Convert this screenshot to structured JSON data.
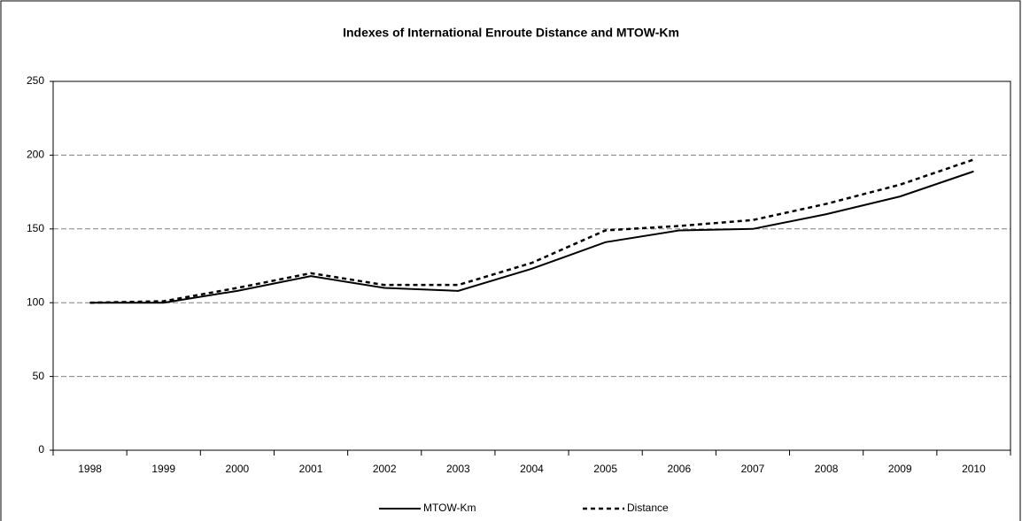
{
  "chart_data": {
    "type": "line",
    "title": "Indexes of International Enroute Distance and MTOW-Km",
    "categories": [
      "1998",
      "1999",
      "2000",
      "2001",
      "2002",
      "2003",
      "2004",
      "2005",
      "2006",
      "2007",
      "2008",
      "2009",
      "2010"
    ],
    "series": [
      {
        "name": "MTOW-Km",
        "color": "#000000",
        "dash": "solid",
        "values": [
          100,
          100,
          108,
          118,
          110,
          108,
          123,
          141,
          149,
          150,
          160,
          172,
          189
        ]
      },
      {
        "name": "Distance",
        "color": "#000000",
        "dash": "dotted",
        "values": [
          100,
          101,
          110,
          120,
          112,
          112,
          127,
          149,
          152,
          156,
          167,
          180,
          197
        ]
      }
    ],
    "ylim": [
      0,
      250
    ],
    "yticks": [
      0,
      50,
      100,
      150,
      200,
      250
    ],
    "grid": true,
    "legend": "bottom"
  }
}
